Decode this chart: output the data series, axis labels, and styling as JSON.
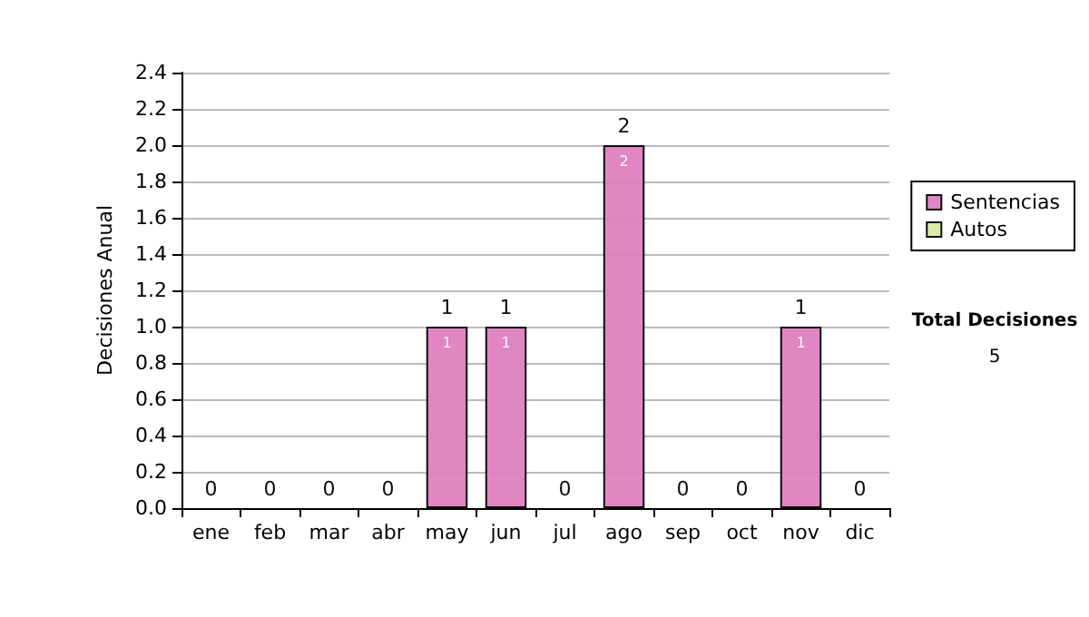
{
  "chart_data": {
    "type": "bar",
    "ylabel": "Decisiones Anual",
    "categories": [
      "ene",
      "feb",
      "mar",
      "abr",
      "may",
      "jun",
      "jul",
      "ago",
      "sep",
      "oct",
      "nov",
      "dic"
    ],
    "series": [
      {
        "name": "Sentencias",
        "color": "#de80c0",
        "values": [
          0,
          0,
          0,
          0,
          1,
          1,
          0,
          2,
          0,
          0,
          1,
          0
        ],
        "value_labels": [
          null,
          null,
          null,
          null,
          "1",
          "1",
          null,
          "2",
          null,
          null,
          "1",
          null
        ]
      },
      {
        "name": "Autos",
        "color": "#d8eaa0",
        "values": [
          0,
          0,
          0,
          0,
          0,
          0,
          0,
          0,
          0,
          0,
          0,
          0
        ]
      }
    ],
    "stacked": true,
    "totals": [
      "0",
      "0",
      "0",
      "0",
      "1",
      "1",
      "0",
      "2",
      "0",
      "0",
      "1",
      "0"
    ],
    "ylim": [
      0,
      2.4
    ],
    "yticks": [
      {
        "value": 0,
        "label": "0.0"
      },
      0.2,
      0.4,
      0.6,
      0.8,
      {
        "value": 1,
        "label": "1.0"
      },
      1.2,
      1.4,
      1.6,
      1.8,
      {
        "value": 2,
        "label": "2.0"
      },
      2.2,
      2.4
    ],
    "grid": "y",
    "legend": "right",
    "annotations": [
      "Total Decisiones",
      "5"
    ]
  }
}
